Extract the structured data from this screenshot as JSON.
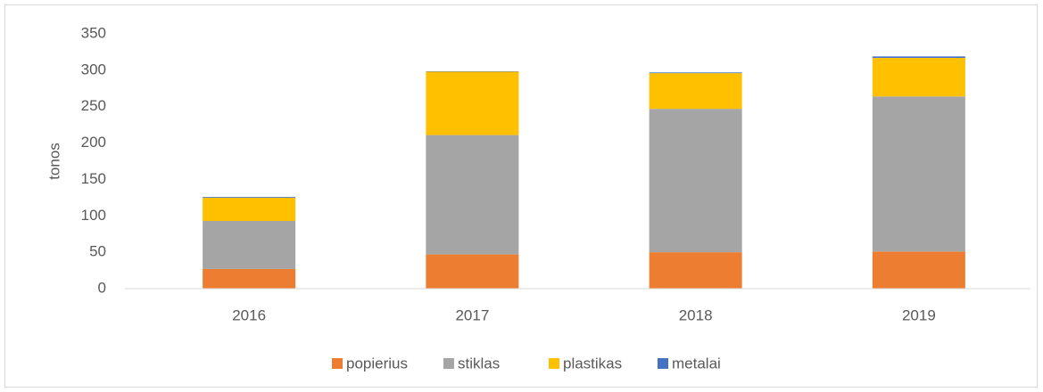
{
  "chart_data": {
    "type": "stacked_bar",
    "ylabel": "tonos",
    "categories": [
      "2016",
      "2017",
      "2018",
      "2019"
    ],
    "series": [
      {
        "name": "popierius",
        "color": "#ed7d31",
        "values": [
          27,
          47,
          50,
          51
        ]
      },
      {
        "name": "stiklas",
        "color": "#a5a5a5",
        "values": [
          66,
          164,
          197,
          213
        ]
      },
      {
        "name": "plastikas",
        "color": "#ffc000",
        "values": [
          32,
          87,
          49,
          53
        ]
      },
      {
        "name": "metalai",
        "color": "#4472c4",
        "values": [
          1,
          0.5,
          1,
          2
        ]
      }
    ],
    "ylim": [
      0,
      350
    ],
    "yticks": [
      0,
      50,
      100,
      150,
      200,
      250,
      300,
      350
    ],
    "grid": false,
    "legend": "bottom"
  }
}
